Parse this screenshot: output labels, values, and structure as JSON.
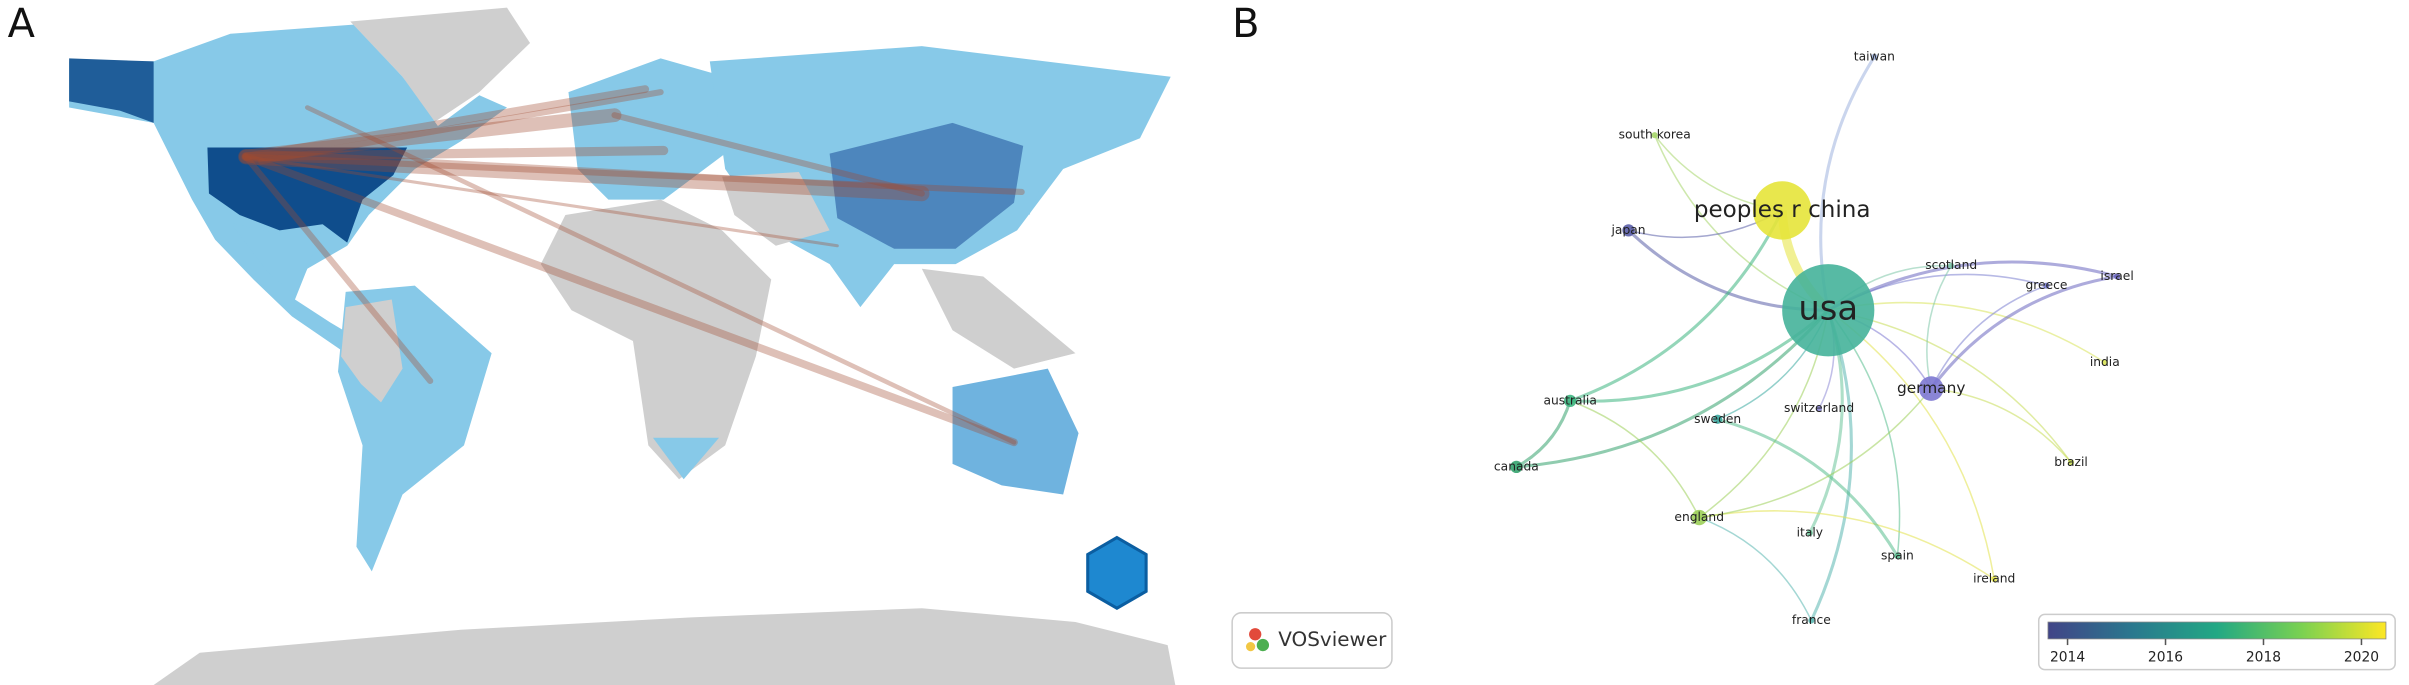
{
  "panels": {
    "a": {
      "label": "A"
    },
    "b": {
      "label": "B",
      "logo": "VOSviewer",
      "nodes": [
        {
          "label": "taiwan",
          "color": "#9fb3df"
        },
        {
          "label": "south korea",
          "color": "#a6d66a"
        },
        {
          "label": "peoples r china",
          "color": "#e6e43a"
        },
        {
          "label": "japan",
          "color": "#5a5ea8"
        },
        {
          "label": "usa",
          "color": "#45b39a"
        },
        {
          "label": "scotland",
          "color": "#7ec7a8"
        },
        {
          "label": "greece",
          "color": "#7b7fd0"
        },
        {
          "label": "israel",
          "color": "#6a66c0"
        },
        {
          "label": "india",
          "color": "#d9e45a"
        },
        {
          "label": "germany",
          "color": "#7d78d2"
        },
        {
          "label": "australia",
          "color": "#3cb57f"
        },
        {
          "label": "sweden",
          "color": "#3ba9a0"
        },
        {
          "label": "switzerland",
          "color": "#8e8ad6"
        },
        {
          "label": "canada",
          "color": "#34a36e"
        },
        {
          "label": "brazil",
          "color": "#c7dd55"
        },
        {
          "label": "england",
          "color": "#9ccf59"
        },
        {
          "label": "italy",
          "color": "#6cc49a"
        },
        {
          "label": "spain",
          "color": "#58bd8e"
        },
        {
          "label": "ireland",
          "color": "#e2e24a"
        },
        {
          "label": "france",
          "color": "#5ab6b0"
        }
      ],
      "colorbar": {
        "lim": [
          2013.6,
          2020.5
        ],
        "ticks": [
          2014,
          2016,
          2018,
          2020
        ],
        "colors": [
          "#414487",
          "#2a788e",
          "#22a884",
          "#7ad151",
          "#fde725"
        ]
      }
    }
  }
}
